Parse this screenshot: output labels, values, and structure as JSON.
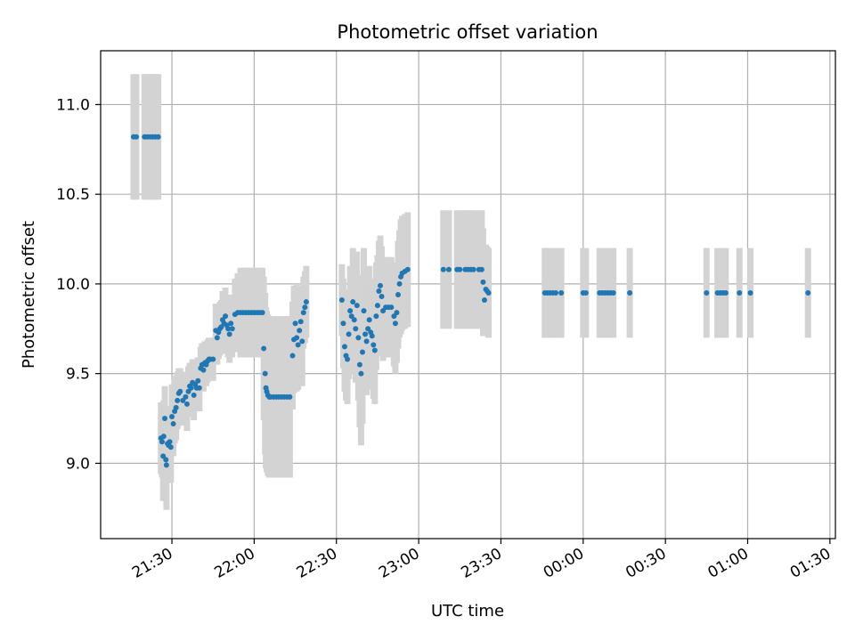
{
  "chart_data": {
    "type": "scatter",
    "title": "Photometric offset variation",
    "xlabel": "UTC time",
    "ylabel": "Photometric offset",
    "x_is_time": true,
    "xlim": [
      "21:04",
      "01:32"
    ],
    "ylim": [
      8.58,
      11.3
    ],
    "grid": true,
    "colors": {
      "points": "#1f77b4",
      "error_bars": "#d3d3d3",
      "grid": "#b0b0b0"
    },
    "x_ticks": [
      "21:30",
      "22:00",
      "22:30",
      "23:00",
      "23:30",
      "00:00",
      "00:30",
      "01:00",
      "01:30"
    ],
    "y_ticks": [
      "9.0",
      "9.5",
      "10.0",
      "10.5",
      "11.0"
    ],
    "series": [
      {
        "values": [
          {
            "x": "21:16",
            "y": 10.82,
            "err": 0.35
          },
          {
            "x": "21:17",
            "y": 10.82,
            "err": 0.35
          },
          {
            "x": "21:20",
            "y": 10.82,
            "err": 0.35
          },
          {
            "x": "21:21",
            "y": 10.82,
            "err": 0.35
          },
          {
            "x": "21:22",
            "y": 10.82,
            "err": 0.35
          },
          {
            "x": "21:23",
            "y": 10.82,
            "err": 0.35
          },
          {
            "x": "21:24",
            "y": 10.82,
            "err": 0.35
          },
          {
            "x": "21:25",
            "y": 10.82,
            "err": 0.35
          },
          {
            "x": "21:26",
            "y": 9.14,
            "err": 0.2
          },
          {
            "x": "21:26.4",
            "y": 9.12,
            "err": 0.2
          },
          {
            "x": "21:26.8",
            "y": 9.04,
            "err": 0.25
          },
          {
            "x": "21:27",
            "y": 9.15,
            "err": 0.2
          },
          {
            "x": "21:27.4",
            "y": 9.25,
            "err": 0.18
          },
          {
            "x": "21:27.8",
            "y": 9.02,
            "err": 0.22
          },
          {
            "x": "21:28",
            "y": 8.99,
            "err": 0.25
          },
          {
            "x": "21:28.4",
            "y": 9.11,
            "err": 0.2
          },
          {
            "x": "21:28.8",
            "y": 9.1,
            "err": 0.2
          },
          {
            "x": "21:29.2",
            "y": 9.12,
            "err": 0.2
          },
          {
            "x": "21:29.6",
            "y": 9.09,
            "err": 0.2
          },
          {
            "x": "21:30",
            "y": 9.26,
            "err": 0.18
          },
          {
            "x": "21:30.5",
            "y": 9.22,
            "err": 0.18
          },
          {
            "x": "21:31",
            "y": 9.29,
            "err": 0.18
          },
          {
            "x": "21:31.5",
            "y": 9.31,
            "err": 0.18
          },
          {
            "x": "21:32",
            "y": 9.35,
            "err": 0.16
          },
          {
            "x": "21:32.5",
            "y": 9.39,
            "err": 0.14
          },
          {
            "x": "21:33",
            "y": 9.4,
            "err": 0.13
          },
          {
            "x": "21:34",
            "y": 9.35,
            "err": 0.14
          },
          {
            "x": "21:35",
            "y": 9.37,
            "err": 0.14
          },
          {
            "x": "21:35.5",
            "y": 9.33,
            "err": 0.15
          },
          {
            "x": "21:36",
            "y": 9.4,
            "err": 0.14
          },
          {
            "x": "21:36.5",
            "y": 9.43,
            "err": 0.13
          },
          {
            "x": "21:37",
            "y": 9.42,
            "err": 0.13
          },
          {
            "x": "21:37.5",
            "y": 9.45,
            "err": 0.13
          },
          {
            "x": "21:38",
            "y": 9.38,
            "err": 0.14
          },
          {
            "x": "21:38.5",
            "y": 9.44,
            "err": 0.13
          },
          {
            "x": "21:39",
            "y": 9.42,
            "err": 0.13
          },
          {
            "x": "21:39.5",
            "y": 9.46,
            "err": 0.13
          },
          {
            "x": "21:40",
            "y": 9.42,
            "err": 0.13
          },
          {
            "x": "21:40.5",
            "y": 9.53,
            "err": 0.12
          },
          {
            "x": "21:41",
            "y": 9.55,
            "err": 0.12
          },
          {
            "x": "21:41.5",
            "y": 9.52,
            "err": 0.12
          },
          {
            "x": "21:42",
            "y": 9.56,
            "err": 0.12
          },
          {
            "x": "21:42.5",
            "y": 9.55,
            "err": 0.12
          },
          {
            "x": "21:43",
            "y": 9.57,
            "err": 0.12
          },
          {
            "x": "21:43.5",
            "y": 9.58,
            "err": 0.12
          },
          {
            "x": "21:44",
            "y": 9.58,
            "err": 0.12
          },
          {
            "x": "21:45",
            "y": 9.58,
            "err": 0.12
          },
          {
            "x": "21:46",
            "y": 9.74,
            "err": 0.15
          },
          {
            "x": "21:46.5",
            "y": 9.7,
            "err": 0.15
          },
          {
            "x": "21:47",
            "y": 9.73,
            "err": 0.15
          },
          {
            "x": "21:47.5",
            "y": 9.75,
            "err": 0.15
          },
          {
            "x": "21:48",
            "y": 9.76,
            "err": 0.15
          },
          {
            "x": "21:48.5",
            "y": 9.8,
            "err": 0.16
          },
          {
            "x": "21:49",
            "y": 9.78,
            "err": 0.16
          },
          {
            "x": "21:49.5",
            "y": 9.82,
            "err": 0.16
          },
          {
            "x": "21:50",
            "y": 9.77,
            "err": 0.16
          },
          {
            "x": "21:50.5",
            "y": 9.75,
            "err": 0.16
          },
          {
            "x": "21:51",
            "y": 9.72,
            "err": 0.16
          },
          {
            "x": "21:51.5",
            "y": 9.78,
            "err": 0.16
          },
          {
            "x": "21:52",
            "y": 9.75,
            "err": 0.16
          },
          {
            "x": "21:53",
            "y": 9.83,
            "err": 0.2
          },
          {
            "x": "21:54",
            "y": 9.84,
            "err": 0.22
          },
          {
            "x": "21:55",
            "y": 9.84,
            "err": 0.25
          },
          {
            "x": "21:56",
            "y": 9.84,
            "err": 0.25
          },
          {
            "x": "21:57",
            "y": 9.84,
            "err": 0.25
          },
          {
            "x": "21:58",
            "y": 9.84,
            "err": 0.25
          },
          {
            "x": "21:59",
            "y": 9.84,
            "err": 0.25
          },
          {
            "x": "22:00",
            "y": 9.84,
            "err": 0.25
          },
          {
            "x": "22:01",
            "y": 9.84,
            "err": 0.25
          },
          {
            "x": "22:02",
            "y": 9.84,
            "err": 0.25
          },
          {
            "x": "22:03",
            "y": 9.84,
            "err": 0.25
          },
          {
            "x": "22:03.5",
            "y": 9.64,
            "err": 0.4
          },
          {
            "x": "22:04",
            "y": 9.5,
            "err": 0.45
          },
          {
            "x": "22:04.3",
            "y": 9.42,
            "err": 0.45
          },
          {
            "x": "22:04.6",
            "y": 9.4,
            "err": 0.45
          },
          {
            "x": "22:05",
            "y": 9.38,
            "err": 0.45
          },
          {
            "x": "22:05.5",
            "y": 9.37,
            "err": 0.45
          },
          {
            "x": "22:06",
            "y": 9.37,
            "err": 0.45
          },
          {
            "x": "22:07",
            "y": 9.37,
            "err": 0.45
          },
          {
            "x": "22:08",
            "y": 9.37,
            "err": 0.45
          },
          {
            "x": "22:09",
            "y": 9.37,
            "err": 0.45
          },
          {
            "x": "22:10",
            "y": 9.37,
            "err": 0.45
          },
          {
            "x": "22:11",
            "y": 9.37,
            "err": 0.45
          },
          {
            "x": "22:12",
            "y": 9.37,
            "err": 0.45
          },
          {
            "x": "22:13",
            "y": 9.37,
            "err": 0.45
          },
          {
            "x": "22:14",
            "y": 9.6,
            "err": 0.3
          },
          {
            "x": "22:14.5",
            "y": 9.69,
            "err": 0.3
          },
          {
            "x": "22:15",
            "y": 9.78,
            "err": 0.2
          },
          {
            "x": "22:15.5",
            "y": 9.7,
            "err": 0.3
          },
          {
            "x": "22:16",
            "y": 9.66,
            "err": 0.25
          },
          {
            "x": "22:16.5",
            "y": 9.74,
            "err": 0.2
          },
          {
            "x": "22:17",
            "y": 9.79,
            "err": 0.2
          },
          {
            "x": "22:17.5",
            "y": 9.68,
            "err": 0.25
          },
          {
            "x": "22:18",
            "y": 9.84,
            "err": 0.2
          },
          {
            "x": "22:18.5",
            "y": 9.87,
            "err": 0.2
          },
          {
            "x": "22:19",
            "y": 9.9,
            "err": 0.2
          },
          {
            "x": "22:32",
            "y": 9.91,
            "err": 0.2
          },
          {
            "x": "22:32.5",
            "y": 9.78,
            "err": 0.25
          },
          {
            "x": "22:33",
            "y": 9.65,
            "err": 0.25
          },
          {
            "x": "22:33.5",
            "y": 9.6,
            "err": 0.25
          },
          {
            "x": "22:34",
            "y": 9.58,
            "err": 0.25
          },
          {
            "x": "22:34.5",
            "y": 9.72,
            "err": 0.25
          },
          {
            "x": "22:35",
            "y": 9.85,
            "err": 0.25
          },
          {
            "x": "22:35.5",
            "y": 9.82,
            "err": 0.25
          },
          {
            "x": "22:36",
            "y": 9.9,
            "err": 0.3
          },
          {
            "x": "22:36.5",
            "y": 9.8,
            "err": 0.3
          },
          {
            "x": "22:37",
            "y": 9.75,
            "err": 0.3
          },
          {
            "x": "22:37.5",
            "y": 9.88,
            "err": 0.3
          },
          {
            "x": "22:38",
            "y": 9.7,
            "err": 0.35
          },
          {
            "x": "22:38.5",
            "y": 9.55,
            "err": 0.35
          },
          {
            "x": "22:39",
            "y": 9.5,
            "err": 0.4
          },
          {
            "x": "22:39.5",
            "y": 9.62,
            "err": 0.4
          },
          {
            "x": "22:40",
            "y": 9.85,
            "err": 0.35
          },
          {
            "x": "22:40.5",
            "y": 9.72,
            "err": 0.3
          },
          {
            "x": "22:41",
            "y": 9.68,
            "err": 0.3
          },
          {
            "x": "22:41.5",
            "y": 9.75,
            "err": 0.3
          },
          {
            "x": "22:42",
            "y": 9.8,
            "err": 0.3
          },
          {
            "x": "22:42.5",
            "y": 9.73,
            "err": 0.3
          },
          {
            "x": "22:43",
            "y": 9.71,
            "err": 0.3
          },
          {
            "x": "22:43.5",
            "y": 9.66,
            "err": 0.3
          },
          {
            "x": "22:44",
            "y": 9.63,
            "err": 0.3
          },
          {
            "x": "22:44.5",
            "y": 9.82,
            "err": 0.3
          },
          {
            "x": "22:45",
            "y": 9.88,
            "err": 0.28
          },
          {
            "x": "22:45.5",
            "y": 9.96,
            "err": 0.28
          },
          {
            "x": "22:46",
            "y": 9.99,
            "err": 0.28
          },
          {
            "x": "22:46.5",
            "y": 9.93,
            "err": 0.28
          },
          {
            "x": "22:47",
            "y": 9.85,
            "err": 0.28
          },
          {
            "x": "22:48",
            "y": 9.87,
            "err": 0.28
          },
          {
            "x": "22:49",
            "y": 9.87,
            "err": 0.28
          },
          {
            "x": "22:50",
            "y": 9.87,
            "err": 0.28
          },
          {
            "x": "22:51",
            "y": 9.82,
            "err": 0.28
          },
          {
            "x": "22:51.5",
            "y": 9.78,
            "err": 0.28
          },
          {
            "x": "22:52",
            "y": 9.84,
            "err": 0.28
          },
          {
            "x": "22:52.5",
            "y": 9.94,
            "err": 0.3
          },
          {
            "x": "22:53",
            "y": 10.0,
            "err": 0.3
          },
          {
            "x": "22:53.5",
            "y": 10.04,
            "err": 0.32
          },
          {
            "x": "22:54",
            "y": 10.06,
            "err": 0.32
          },
          {
            "x": "22:55",
            "y": 10.07,
            "err": 0.32
          },
          {
            "x": "22:56",
            "y": 10.08,
            "err": 0.32
          },
          {
            "x": "23:09",
            "y": 10.08,
            "err": 0.33
          },
          {
            "x": "23:11",
            "y": 10.08,
            "err": 0.33
          },
          {
            "x": "23:14",
            "y": 10.08,
            "err": 0.33
          },
          {
            "x": "23:15",
            "y": 10.08,
            "err": 0.33
          },
          {
            "x": "23:17",
            "y": 10.08,
            "err": 0.33
          },
          {
            "x": "23:18",
            "y": 10.08,
            "err": 0.33
          },
          {
            "x": "23:19",
            "y": 10.08,
            "err": 0.33
          },
          {
            "x": "23:20",
            "y": 10.08,
            "err": 0.33
          },
          {
            "x": "23:22",
            "y": 10.08,
            "err": 0.33
          },
          {
            "x": "23:23",
            "y": 10.08,
            "err": 0.33
          },
          {
            "x": "23:23.5",
            "y": 10.01,
            "err": 0.3
          },
          {
            "x": "23:24",
            "y": 9.91,
            "err": 0.2
          },
          {
            "x": "23:24.5",
            "y": 9.97,
            "err": 0.25
          },
          {
            "x": "23:25",
            "y": 9.96,
            "err": 0.25
          },
          {
            "x": "23:25.5",
            "y": 9.95,
            "err": 0.25
          },
          {
            "x": "23:46",
            "y": 9.95,
            "err": 0.25
          },
          {
            "x": "23:47",
            "y": 9.95,
            "err": 0.25
          },
          {
            "x": "23:48",
            "y": 9.95,
            "err": 0.25
          },
          {
            "x": "23:49",
            "y": 9.95,
            "err": 0.25
          },
          {
            "x": "23:50",
            "y": 9.95,
            "err": 0.25
          },
          {
            "x": "23:52",
            "y": 9.95,
            "err": 0.25
          },
          {
            "x": "00:00",
            "y": 9.95,
            "err": 0.25
          },
          {
            "x": "00:01",
            "y": 9.95,
            "err": 0.25
          },
          {
            "x": "00:06",
            "y": 9.95,
            "err": 0.25
          },
          {
            "x": "00:07",
            "y": 9.95,
            "err": 0.25
          },
          {
            "x": "00:08",
            "y": 9.95,
            "err": 0.25
          },
          {
            "x": "00:09",
            "y": 9.95,
            "err": 0.25
          },
          {
            "x": "00:10",
            "y": 9.95,
            "err": 0.25
          },
          {
            "x": "00:11",
            "y": 9.95,
            "err": 0.25
          },
          {
            "x": "00:17",
            "y": 9.95,
            "err": 0.25
          },
          {
            "x": "00:45",
            "y": 9.95,
            "err": 0.25
          },
          {
            "x": "00:49",
            "y": 9.95,
            "err": 0.25
          },
          {
            "x": "00:50",
            "y": 9.95,
            "err": 0.25
          },
          {
            "x": "00:51",
            "y": 9.95,
            "err": 0.25
          },
          {
            "x": "00:52",
            "y": 9.95,
            "err": 0.25
          },
          {
            "x": "00:57",
            "y": 9.95,
            "err": 0.25
          },
          {
            "x": "01:01",
            "y": 9.95,
            "err": 0.25
          },
          {
            "x": "01:22",
            "y": 9.95,
            "err": 0.25
          }
        ]
      }
    ]
  }
}
